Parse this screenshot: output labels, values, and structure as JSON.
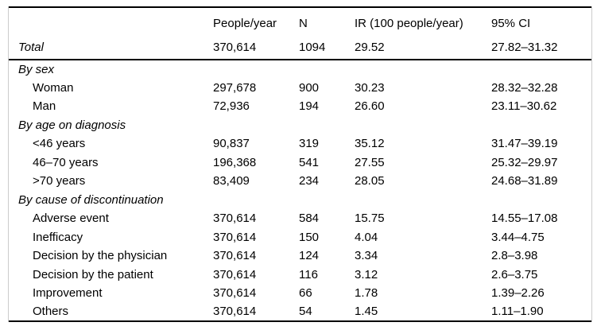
{
  "table": {
    "column_keys": [
      "people-year",
      "n",
      "ir",
      "ci"
    ],
    "columns": [
      "People/year",
      "N",
      "IR (100 people/year)",
      "95% CI"
    ],
    "rows": [
      {
        "label": "Total",
        "section": true,
        "indent": false,
        "divider": true,
        "values": [
          "370,614",
          "1094",
          "29.52",
          "27.82–31.32"
        ]
      },
      {
        "label": "By sex",
        "section": true,
        "indent": false,
        "divider": false,
        "values": [
          "",
          "",
          "",
          ""
        ]
      },
      {
        "label": "Woman",
        "section": false,
        "indent": true,
        "divider": false,
        "values": [
          "297,678",
          "900",
          "30.23",
          "28.32–32.28"
        ]
      },
      {
        "label": "Man",
        "section": false,
        "indent": true,
        "divider": false,
        "values": [
          "72,936",
          "194",
          "26.60",
          "23.11–30.62"
        ]
      },
      {
        "label": "By age on diagnosis",
        "section": true,
        "indent": false,
        "divider": false,
        "values": [
          "",
          "",
          "",
          ""
        ]
      },
      {
        "label": "<46 years",
        "section": false,
        "indent": true,
        "divider": false,
        "values": [
          "90,837",
          "319",
          "35.12",
          "31.47–39.19"
        ]
      },
      {
        "label": "46–70 years",
        "section": false,
        "indent": true,
        "divider": false,
        "values": [
          "196,368",
          "541",
          "27.55",
          "25.32–29.97"
        ]
      },
      {
        "label": ">70 years",
        "section": false,
        "indent": true,
        "divider": false,
        "values": [
          "83,409",
          "234",
          "28.05",
          "24.68–31.89"
        ]
      },
      {
        "label": "By cause of discontinuation",
        "section": true,
        "indent": false,
        "divider": false,
        "values": [
          "",
          "",
          "",
          ""
        ]
      },
      {
        "label": "Adverse event",
        "section": false,
        "indent": true,
        "divider": false,
        "values": [
          "370,614",
          "584",
          "15.75",
          "14.55–17.08"
        ]
      },
      {
        "label": "Inefficacy",
        "section": false,
        "indent": true,
        "divider": false,
        "values": [
          "370,614",
          "150",
          "4.04",
          "3.44–4.75"
        ]
      },
      {
        "label": "Decision by the physician",
        "section": false,
        "indent": true,
        "divider": false,
        "values": [
          "370,614",
          "124",
          "3.34",
          "2.8–3.98"
        ]
      },
      {
        "label": "Decision by the patient",
        "section": false,
        "indent": true,
        "divider": false,
        "values": [
          "370,614",
          "116",
          "3.12",
          "2.6–3.75"
        ]
      },
      {
        "label": "Improvement",
        "section": false,
        "indent": true,
        "divider": false,
        "values": [
          "370,614",
          "66",
          "1.78",
          "1.39–2.26"
        ]
      },
      {
        "label": "Others",
        "section": false,
        "indent": true,
        "divider": false,
        "values": [
          "370,614",
          "54",
          "1.45",
          "1.11–1.90"
        ]
      }
    ],
    "colors": {
      "rule": "#000000",
      "side_border": "#cccccc",
      "text": "#000000",
      "background": "#ffffff"
    }
  }
}
